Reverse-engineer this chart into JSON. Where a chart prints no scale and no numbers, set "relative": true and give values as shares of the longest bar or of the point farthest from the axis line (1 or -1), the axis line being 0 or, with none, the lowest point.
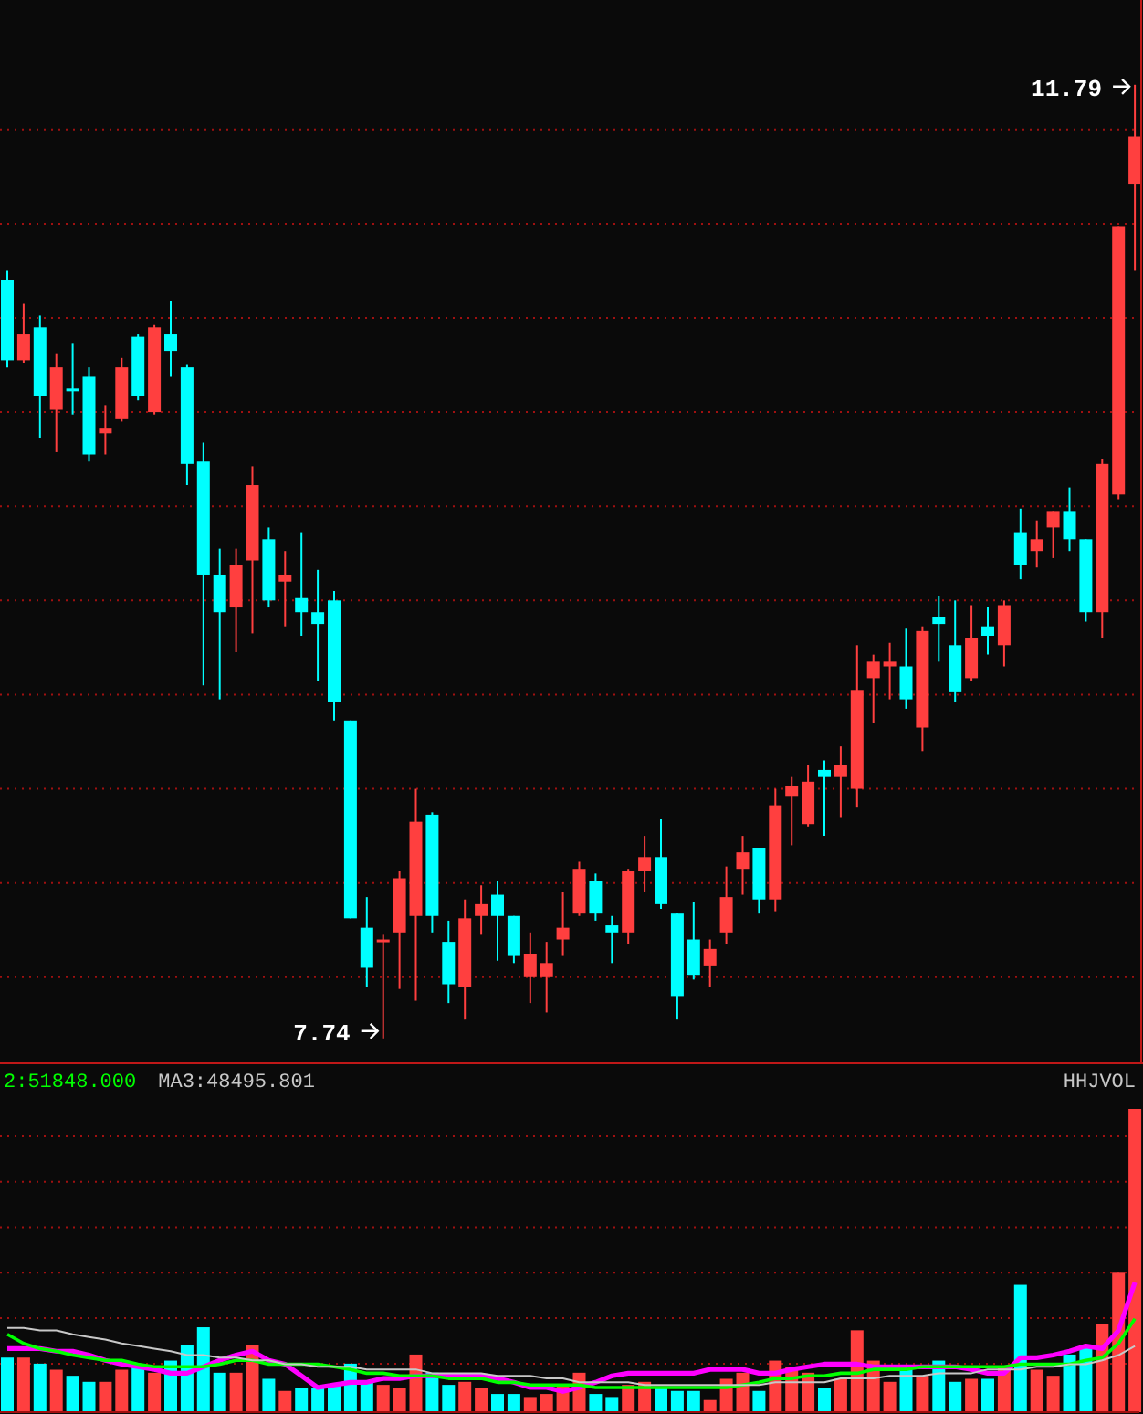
{
  "chart_data": [
    {
      "type": "candlestick",
      "categories": [
        null,
        null,
        null,
        null,
        null,
        null,
        null,
        null,
        null,
        null,
        null,
        null,
        null,
        null,
        null,
        null,
        null,
        null,
        null,
        null,
        null,
        null,
        null,
        null,
        null,
        null,
        null,
        null,
        null,
        null,
        null,
        null,
        null,
        null,
        null,
        null,
        null,
        null,
        null,
        null,
        null,
        null,
        null,
        null,
        null,
        null,
        null,
        null,
        null,
        null,
        null,
        null,
        null,
        null,
        null,
        null,
        null,
        null,
        null,
        null,
        null,
        null,
        null,
        null,
        null,
        null,
        null,
        null,
        null,
        null
      ],
      "ohlc": [
        [
          10.96,
          11.0,
          10.59,
          10.62
        ],
        [
          10.62,
          10.86,
          10.61,
          10.73
        ],
        [
          10.76,
          10.81,
          10.29,
          10.47
        ],
        [
          10.41,
          10.65,
          10.23,
          10.59
        ],
        [
          10.5,
          10.69,
          10.39,
          10.49
        ],
        [
          10.55,
          10.59,
          10.19,
          10.22
        ],
        [
          10.31,
          10.43,
          10.22,
          10.33
        ],
        [
          10.37,
          10.63,
          10.36,
          10.59
        ],
        [
          10.72,
          10.73,
          10.45,
          10.47
        ],
        [
          10.4,
          10.77,
          10.39,
          10.76
        ],
        [
          10.73,
          10.87,
          10.55,
          10.66
        ],
        [
          10.59,
          10.6,
          10.09,
          10.18
        ],
        [
          10.19,
          10.27,
          9.24,
          9.71
        ],
        [
          9.71,
          9.82,
          9.18,
          9.55
        ],
        [
          9.57,
          9.82,
          9.38,
          9.75
        ],
        [
          9.77,
          10.17,
          9.46,
          10.09
        ],
        [
          9.86,
          9.91,
          9.57,
          9.6
        ],
        [
          9.68,
          9.81,
          9.49,
          9.71
        ],
        [
          9.61,
          9.89,
          9.45,
          9.55
        ],
        [
          9.55,
          9.73,
          9.26,
          9.5
        ],
        [
          9.6,
          9.64,
          9.09,
          9.17
        ],
        [
          9.09,
          9.09,
          8.25,
          8.25
        ],
        [
          8.21,
          8.34,
          7.96,
          8.04
        ],
        [
          8.15,
          8.18,
          7.74,
          8.16
        ],
        [
          8.19,
          8.45,
          7.95,
          8.42
        ],
        [
          8.26,
          8.8,
          7.9,
          8.66
        ],
        [
          8.69,
          8.7,
          8.19,
          8.26
        ],
        [
          8.15,
          8.24,
          7.89,
          7.97
        ],
        [
          7.96,
          8.33,
          7.82,
          8.25
        ],
        [
          8.26,
          8.39,
          8.18,
          8.31
        ],
        [
          8.35,
          8.41,
          8.07,
          8.26
        ],
        [
          8.26,
          8.26,
          8.06,
          8.09
        ],
        [
          8.0,
          8.19,
          7.89,
          8.1
        ],
        [
          8.0,
          8.15,
          7.85,
          8.06
        ],
        [
          8.16,
          8.36,
          8.09,
          8.21
        ],
        [
          8.27,
          8.49,
          8.26,
          8.46
        ],
        [
          8.41,
          8.44,
          8.24,
          8.27
        ],
        [
          8.22,
          8.26,
          8.06,
          8.19
        ],
        [
          8.19,
          8.46,
          8.14,
          8.45
        ],
        [
          8.45,
          8.6,
          8.36,
          8.51
        ],
        [
          8.51,
          8.67,
          8.29,
          8.31
        ],
        [
          8.27,
          8.27,
          7.82,
          7.92
        ],
        [
          8.16,
          8.32,
          7.99,
          8.01
        ],
        [
          8.05,
          8.16,
          7.96,
          8.12
        ],
        [
          8.19,
          8.47,
          8.14,
          8.34
        ],
        [
          8.46,
          8.6,
          8.35,
          8.53
        ],
        [
          8.55,
          8.55,
          8.27,
          8.33
        ],
        [
          8.33,
          8.8,
          8.28,
          8.73
        ],
        [
          8.77,
          8.85,
          8.56,
          8.81
        ],
        [
          8.65,
          8.9,
          8.64,
          8.83
        ],
        [
          8.88,
          8.92,
          8.6,
          8.85
        ],
        [
          8.85,
          8.98,
          8.68,
          8.9
        ],
        [
          8.8,
          9.41,
          8.72,
          9.22
        ],
        [
          9.27,
          9.37,
          9.08,
          9.34
        ],
        [
          9.32,
          9.42,
          9.18,
          9.34
        ],
        [
          9.32,
          9.48,
          9.14,
          9.18
        ],
        [
          9.06,
          9.49,
          8.96,
          9.47
        ],
        [
          9.53,
          9.62,
          9.34,
          9.5
        ],
        [
          9.41,
          9.6,
          9.17,
          9.21
        ],
        [
          9.27,
          9.58,
          9.26,
          9.44
        ],
        [
          9.49,
          9.57,
          9.37,
          9.45
        ],
        [
          9.41,
          9.6,
          9.32,
          9.58
        ],
        [
          9.89,
          9.99,
          9.69,
          9.75
        ],
        [
          9.81,
          9.94,
          9.74,
          9.86
        ],
        [
          9.91,
          9.98,
          9.78,
          9.98
        ],
        [
          9.98,
          10.08,
          9.81,
          9.86
        ],
        [
          9.86,
          9.86,
          9.51,
          9.55
        ],
        [
          9.55,
          10.2,
          9.44,
          10.18
        ],
        [
          10.05,
          11.19,
          10.03,
          11.19
        ],
        [
          11.37,
          11.79,
          11.0,
          11.57
        ]
      ],
      "colors": [
        "#00ffff",
        "#ff3f3f",
        "#00ffff",
        "#ff3f3f",
        "#00ffff",
        "#00ffff",
        "#ff3f3f",
        "#ff3f3f",
        "#00ffff",
        "#ff3f3f",
        "#00ffff",
        "#00ffff",
        "#00ffff",
        "#00ffff",
        "#ff3f3f",
        "#ff3f3f",
        "#00ffff",
        "#ff3f3f",
        "#00ffff",
        "#00ffff",
        "#00ffff",
        "#00ffff",
        "#00ffff",
        "#ff3f3f",
        "#ff3f3f",
        "#ff3f3f",
        "#00ffff",
        "#00ffff",
        "#ff3f3f",
        "#ff3f3f",
        "#00ffff",
        "#00ffff",
        "#ff3f3f",
        "#ff3f3f",
        "#ff3f3f",
        "#ff3f3f",
        "#00ffff",
        "#00ffff",
        "#ff3f3f",
        "#ff3f3f",
        "#00ffff",
        "#00ffff",
        "#00ffff",
        "#ff3f3f",
        "#ff3f3f",
        "#ff3f3f",
        "#00ffff",
        "#ff3f3f",
        "#ff3f3f",
        "#ff3f3f",
        "#00ffff",
        "#ff3f3f",
        "#ff3f3f",
        "#ff3f3f",
        "#ff3f3f",
        "#00ffff",
        "#ff3f3f",
        "#00ffff",
        "#00ffff",
        "#ff3f3f",
        "#00ffff",
        "#ff3f3f",
        "#00ffff",
        "#ff3f3f",
        "#ff3f3f",
        "#00ffff",
        "#00ffff",
        "#ff3f3f",
        "#ff3f3f",
        "#ff3f3f"
      ],
      "ylim": [
        7.65,
        12.15
      ],
      "yticks": [
        {
          "value": 8.0,
          "label": null
        },
        {
          "value": 8.4,
          "label": null
        },
        {
          "value": 8.8,
          "label": null
        },
        {
          "value": 9.2,
          "label": null
        },
        {
          "value": 9.6,
          "label": null
        },
        {
          "value": 10.0,
          "label": null
        },
        {
          "value": 10.4,
          "label": null
        },
        {
          "value": 10.8,
          "label": null
        },
        {
          "value": 11.2,
          "label": null
        },
        {
          "value": 11.6,
          "label": null
        }
      ],
      "grid": "y",
      "tick_labels": false,
      "annotations": [
        "11.79",
        "7.74"
      ]
    },
    {
      "type": "bar",
      "relative": true,
      "ref_lines": [
        {
          "axis": "y",
          "value": 0.16,
          "color": "#a01010",
          "line_style": "dotted"
        },
        {
          "axis": "y",
          "value": 0.31,
          "color": "#a01010",
          "line_style": "dotted"
        },
        {
          "axis": "y",
          "value": 0.46,
          "color": "#a01010",
          "line_style": "dotted"
        },
        {
          "axis": "y",
          "value": 0.61,
          "color": "#a01010",
          "line_style": "dotted"
        },
        {
          "axis": "y",
          "value": 0.76,
          "color": "#a01010",
          "line_style": "dotted"
        },
        {
          "axis": "y",
          "value": 0.91,
          "color": "#a01010",
          "line_style": "dotted"
        }
      ],
      "categories": [
        null,
        null,
        null,
        null,
        null,
        null,
        null,
        null,
        null,
        null,
        null,
        null,
        null,
        null,
        null,
        null,
        null,
        null,
        null,
        null,
        null,
        null,
        null,
        null,
        null,
        null,
        null,
        null,
        null,
        null,
        null,
        null,
        null,
        null,
        null,
        null,
        null,
        null,
        null,
        null,
        null,
        null,
        null,
        null,
        null,
        null,
        null,
        null,
        null,
        null,
        null,
        null,
        null,
        null,
        null,
        null,
        null,
        null,
        null,
        null,
        null,
        null,
        null,
        null,
        null,
        null,
        null,
        null,
        null,
        null
      ],
      "series": [
        {
          "type": "bar",
          "colors": [
            "#00ffff",
            "#ff3f3f",
            "#00ffff",
            "#ff3f3f",
            "#00ffff",
            "#00ffff",
            "#ff3f3f",
            "#ff3f3f",
            "#00ffff",
            "#ff3f3f",
            "#00ffff",
            "#00ffff",
            "#00ffff",
            "#00ffff",
            "#ff3f3f",
            "#ff3f3f",
            "#00ffff",
            "#ff3f3f",
            "#00ffff",
            "#00ffff",
            "#00ffff",
            "#00ffff",
            "#00ffff",
            "#ff3f3f",
            "#ff3f3f",
            "#ff3f3f",
            "#00ffff",
            "#00ffff",
            "#ff3f3f",
            "#ff3f3f",
            "#00ffff",
            "#00ffff",
            "#ff3f3f",
            "#ff3f3f",
            "#ff3f3f",
            "#ff3f3f",
            "#00ffff",
            "#00ffff",
            "#ff3f3f",
            "#ff3f3f",
            "#00ffff",
            "#00ffff",
            "#00ffff",
            "#ff3f3f",
            "#ff3f3f",
            "#ff3f3f",
            "#00ffff",
            "#ff3f3f",
            "#ff3f3f",
            "#ff3f3f",
            "#00ffff",
            "#ff3f3f",
            "#ff3f3f",
            "#ff3f3f",
            "#ff3f3f",
            "#00ffff",
            "#ff3f3f",
            "#00ffff",
            "#00ffff",
            "#ff3f3f",
            "#00ffff",
            "#ff3f3f",
            "#00ffff",
            "#ff3f3f",
            "#ff3f3f",
            "#00ffff",
            "#00ffff",
            "#ff3f3f",
            "#ff3f3f",
            "#ff3f3f"
          ],
          "values": [
            0.18,
            0.18,
            0.16,
            0.14,
            0.12,
            0.1,
            0.1,
            0.14,
            0.15,
            0.13,
            0.17,
            0.22,
            0.28,
            0.13,
            0.13,
            0.22,
            0.11,
            0.07,
            0.08,
            0.08,
            0.09,
            0.16,
            0.1,
            0.09,
            0.08,
            0.19,
            0.13,
            0.09,
            0.1,
            0.08,
            0.06,
            0.06,
            0.05,
            0.06,
            0.09,
            0.13,
            0.06,
            0.05,
            0.09,
            0.1,
            0.08,
            0.07,
            0.07,
            0.04,
            0.11,
            0.13,
            0.07,
            0.17,
            0.15,
            0.13,
            0.08,
            0.11,
            0.27,
            0.17,
            0.1,
            0.14,
            0.12,
            0.17,
            0.1,
            0.11,
            0.11,
            0.15,
            0.42,
            0.14,
            0.12,
            0.19,
            0.22,
            0.29,
            0.46,
            1
          ]
        }
      ]
    },
    {
      "type": "line",
      "relative": true,
      "title": "HHJVOL",
      "categories": [
        null,
        null,
        null,
        null,
        null,
        null,
        null,
        null,
        null,
        null,
        null,
        null,
        null,
        null,
        null,
        null,
        null,
        null,
        null,
        null,
        null,
        null,
        null,
        null,
        null,
        null,
        null,
        null,
        null,
        null,
        null,
        null,
        null,
        null,
        null,
        null,
        null,
        null,
        null,
        null,
        null,
        null,
        null,
        null,
        null,
        null,
        null,
        null,
        null,
        null,
        null,
        null,
        null,
        null,
        null,
        null,
        null,
        null,
        null,
        null,
        null,
        null,
        null,
        null,
        null,
        null,
        null,
        null,
        null,
        null
      ],
      "series": [
        {
          "color": "#ff00ff",
          "values": [
            0.49,
            0.49,
            0.49,
            0.47,
            0.47,
            0.44,
            0.4,
            0.37,
            0.35,
            0.33,
            0.3,
            0.3,
            0.35,
            0.4,
            0.44,
            0.47,
            0.4,
            0.37,
            0.28,
            0.19,
            0.21,
            0.23,
            0.23,
            0.26,
            0.26,
            0.28,
            0.28,
            0.28,
            0.28,
            0.28,
            0.26,
            0.23,
            0.19,
            0.19,
            0.16,
            0.19,
            0.23,
            0.28,
            0.3,
            0.3,
            0.3,
            0.3,
            0.3,
            0.33,
            0.33,
            0.33,
            0.3,
            0.3,
            0.33,
            0.35,
            0.37,
            0.37,
            0.37,
            0.35,
            0.35,
            0.35,
            0.35,
            0.35,
            0.35,
            0.33,
            0.3,
            0.3,
            0.42,
            0.42,
            0.44,
            0.47,
            0.51,
            0.49,
            0.63,
            1
          ]
        },
        {
          "name": "2:51848.000",
          "color": "#00ff00",
          "values": [
            0.6,
            0.53,
            0.49,
            0.47,
            0.44,
            0.42,
            0.4,
            0.4,
            0.37,
            0.35,
            0.35,
            0.35,
            0.35,
            0.37,
            0.4,
            0.4,
            0.37,
            0.37,
            0.37,
            0.37,
            0.35,
            0.33,
            0.3,
            0.3,
            0.28,
            0.28,
            0.28,
            0.26,
            0.26,
            0.26,
            0.23,
            0.23,
            0.21,
            0.21,
            0.21,
            0.21,
            0.19,
            0.19,
            0.19,
            0.19,
            0.19,
            0.19,
            0.19,
            0.19,
            0.19,
            0.21,
            0.23,
            0.26,
            0.26,
            0.28,
            0.28,
            0.3,
            0.3,
            0.33,
            0.33,
            0.33,
            0.35,
            0.35,
            0.35,
            0.35,
            0.35,
            0.35,
            0.37,
            0.37,
            0.37,
            0.37,
            0.4,
            0.42,
            0.53,
            0.72
          ]
        },
        {
          "name": "MA3:48495.801",
          "color": "#c8c8c8",
          "values": [
            0.65,
            0.65,
            0.63,
            0.63,
            0.6,
            0.58,
            0.56,
            0.53,
            0.51,
            0.49,
            0.47,
            0.44,
            0.44,
            0.42,
            0.42,
            0.4,
            0.4,
            0.37,
            0.37,
            0.35,
            0.35,
            0.35,
            0.33,
            0.33,
            0.33,
            0.33,
            0.3,
            0.3,
            0.3,
            0.3,
            0.28,
            0.28,
            0.28,
            0.26,
            0.26,
            0.23,
            0.23,
            0.23,
            0.23,
            0.21,
            0.21,
            0.21,
            0.21,
            0.21,
            0.21,
            0.21,
            0.21,
            0.23,
            0.23,
            0.23,
            0.23,
            0.26,
            0.26,
            0.26,
            0.28,
            0.28,
            0.28,
            0.3,
            0.3,
            0.3,
            0.33,
            0.33,
            0.33,
            0.35,
            0.35,
            0.37,
            0.37,
            0.4,
            0.44,
            0.51
          ]
        }
      ]
    }
  ]
}
